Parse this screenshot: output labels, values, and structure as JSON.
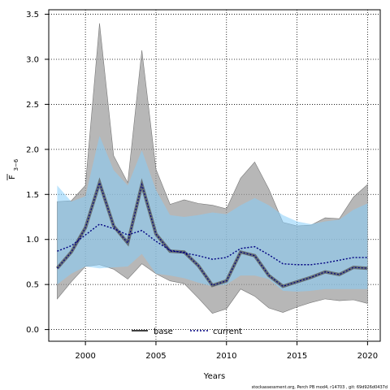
{
  "chart_data": {
    "type": "line",
    "xlabel": "Years",
    "ylabel_main": "F",
    "ylabel_sub": "3−6",
    "xlim": [
      1997.4,
      2020.9
    ],
    "ylim": [
      -0.13,
      3.55
    ],
    "xticks": [
      2000,
      2005,
      2010,
      2015,
      2020
    ],
    "xtick_labels": [
      "2000",
      "2005",
      "2010",
      "2015",
      "2020"
    ],
    "yticks": [
      0.0,
      0.5,
      1.0,
      1.5,
      2.0,
      2.5,
      3.0,
      3.5
    ],
    "ytick_labels": [
      "0.0",
      "0.5",
      "1.0",
      "1.5",
      "2.0",
      "2.5",
      "3.0",
      "3.5"
    ],
    "grid": true,
    "x": [
      1998,
      1999,
      2000,
      2001,
      2002,
      2003,
      2004,
      2005,
      2006,
      2007,
      2008,
      2009,
      2010,
      2011,
      2012,
      2013,
      2014,
      2015,
      2016,
      2017,
      2018,
      2019,
      2020
    ],
    "series": [
      {
        "name": "base",
        "color": "#333333",
        "values": [
          0.68,
          0.86,
          1.13,
          1.63,
          1.15,
          0.96,
          1.61,
          1.06,
          0.87,
          0.86,
          0.71,
          0.49,
          0.54,
          0.86,
          0.82,
          0.6,
          0.48,
          0.53,
          0.58,
          0.64,
          0.61,
          0.69,
          0.68
        ],
        "lower": [
          0.34,
          0.53,
          0.7,
          0.72,
          0.67,
          0.56,
          0.73,
          0.62,
          0.54,
          0.51,
          0.35,
          0.18,
          0.23,
          0.45,
          0.37,
          0.24,
          0.19,
          0.25,
          0.3,
          0.34,
          0.32,
          0.33,
          0.29
        ],
        "upper": [
          1.42,
          1.43,
          1.6,
          3.4,
          1.93,
          1.63,
          3.1,
          1.78,
          1.39,
          1.44,
          1.4,
          1.38,
          1.34,
          1.68,
          1.86,
          1.56,
          1.19,
          1.15,
          1.16,
          1.24,
          1.23,
          1.47,
          1.61
        ]
      },
      {
        "name": "current",
        "color": "#000080",
        "values": [
          0.87,
          0.93,
          1.05,
          1.17,
          1.12,
          1.05,
          1.1,
          0.98,
          0.88,
          0.85,
          0.82,
          0.78,
          0.8,
          0.9,
          0.92,
          0.83,
          0.73,
          0.72,
          0.72,
          0.74,
          0.77,
          0.8,
          0.8
        ],
        "lower": [
          0.5,
          0.62,
          0.7,
          0.68,
          0.69,
          0.7,
          0.84,
          0.62,
          0.6,
          0.57,
          0.52,
          0.48,
          0.5,
          0.6,
          0.6,
          0.56,
          0.43,
          0.42,
          0.43,
          0.45,
          0.45,
          0.45,
          0.45
        ],
        "upper": [
          1.6,
          1.42,
          1.48,
          2.15,
          1.77,
          1.6,
          1.99,
          1.55,
          1.27,
          1.25,
          1.27,
          1.3,
          1.28,
          1.38,
          1.46,
          1.38,
          1.27,
          1.2,
          1.17,
          1.2,
          1.22,
          1.33,
          1.4
        ]
      }
    ],
    "legend": {
      "position": "bottom-center",
      "entries": [
        {
          "label": "base",
          "style": "solid",
          "color": "#000000"
        },
        {
          "label": "current",
          "style": "dotted",
          "color": "#000080"
        }
      ]
    },
    "band_colors": {
      "base": "#999999",
      "current": "#87cefa"
    },
    "footer": "stockassessment.org, Perch PB mod4, r14703 , git: 69d926d0437d"
  }
}
